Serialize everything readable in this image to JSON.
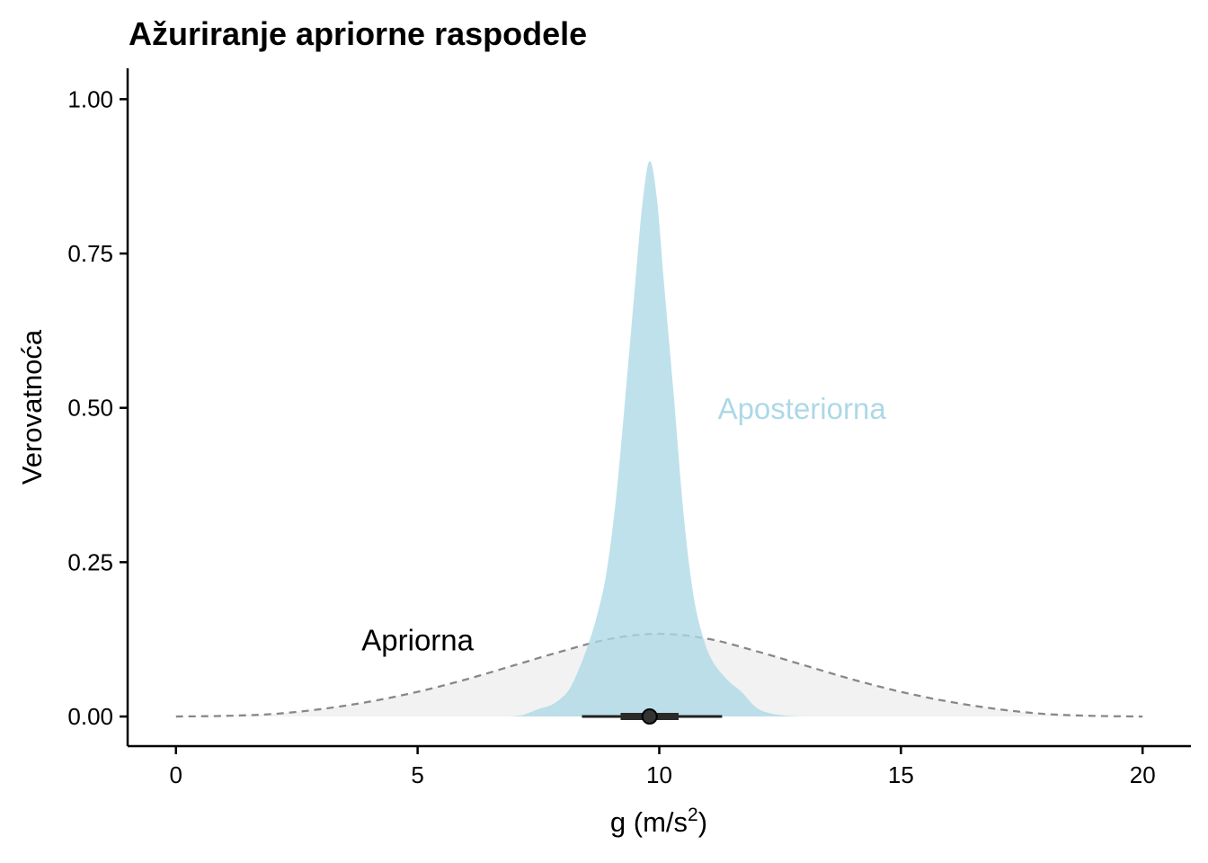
{
  "chart_data": {
    "type": "area",
    "title": "Ažuriranje apriorne raspodele",
    "xlabel": "g (m/s",
    "xlabel_superscript": "2",
    "xlabel_close": ")",
    "ylabel": "Verovatnoća",
    "xlim": [
      -1,
      21
    ],
    "ylim": [
      -0.048,
      1.05
    ],
    "x_ticks": [
      {
        "value": 0,
        "label": "0"
      },
      {
        "value": 5,
        "label": "5"
      },
      {
        "value": 10,
        "label": "10"
      },
      {
        "value": 15,
        "label": "15"
      },
      {
        "value": 20,
        "label": "20"
      }
    ],
    "y_ticks": [
      {
        "value": 0,
        "label": "0.00"
      },
      {
        "value": 0.25,
        "label": "0.25"
      },
      {
        "value": 0.5,
        "label": "0.50"
      },
      {
        "value": 0.75,
        "label": "0.75"
      },
      {
        "value": 1.0,
        "label": "1.00"
      }
    ],
    "grid": false,
    "series": [
      {
        "name": "Apriorna",
        "style": "dashed line with light grey fill",
        "color": "#888888",
        "fill": "#f2f2f2",
        "x": [
          0,
          1,
          2,
          3,
          4,
          5,
          6,
          7,
          8,
          9,
          10,
          11,
          12,
          13,
          14,
          15,
          16,
          17,
          18,
          19,
          20
        ],
        "y": [
          0.0,
          0.001,
          0.004,
          0.012,
          0.024,
          0.04,
          0.06,
          0.083,
          0.106,
          0.126,
          0.134,
          0.126,
          0.106,
          0.083,
          0.06,
          0.04,
          0.024,
          0.012,
          0.004,
          0.001,
          0.0
        ]
      },
      {
        "name": "Aposteriorna",
        "style": "filled density",
        "color": "#add8e6",
        "x": [
          6.9,
          7.2,
          7.5,
          7.8,
          8.1,
          8.3,
          8.5,
          8.7,
          8.9,
          9.1,
          9.3,
          9.5,
          9.65,
          9.8,
          9.95,
          10.1,
          10.3,
          10.5,
          10.7,
          10.9,
          11.1,
          11.4,
          11.7,
          12.0,
          12.3,
          12.7,
          13.1
        ],
        "y": [
          0.0,
          0.003,
          0.012,
          0.02,
          0.04,
          0.07,
          0.11,
          0.16,
          0.23,
          0.35,
          0.52,
          0.7,
          0.83,
          0.9,
          0.84,
          0.7,
          0.52,
          0.33,
          0.2,
          0.13,
          0.09,
          0.06,
          0.04,
          0.015,
          0.005,
          0.001,
          0.0
        ]
      }
    ],
    "point_interval": {
      "point": 9.8,
      "inner_interval": [
        9.2,
        10.4
      ],
      "outer_interval": [
        8.4,
        11.3
      ],
      "y": 0
    },
    "annotations": [
      {
        "text": "Apriorna",
        "x": 5.0,
        "y": 0.12,
        "color": "#000000"
      },
      {
        "text": "Aposteriorna",
        "x": 12.95,
        "y": 0.495,
        "color": "#add8e6"
      }
    ]
  }
}
